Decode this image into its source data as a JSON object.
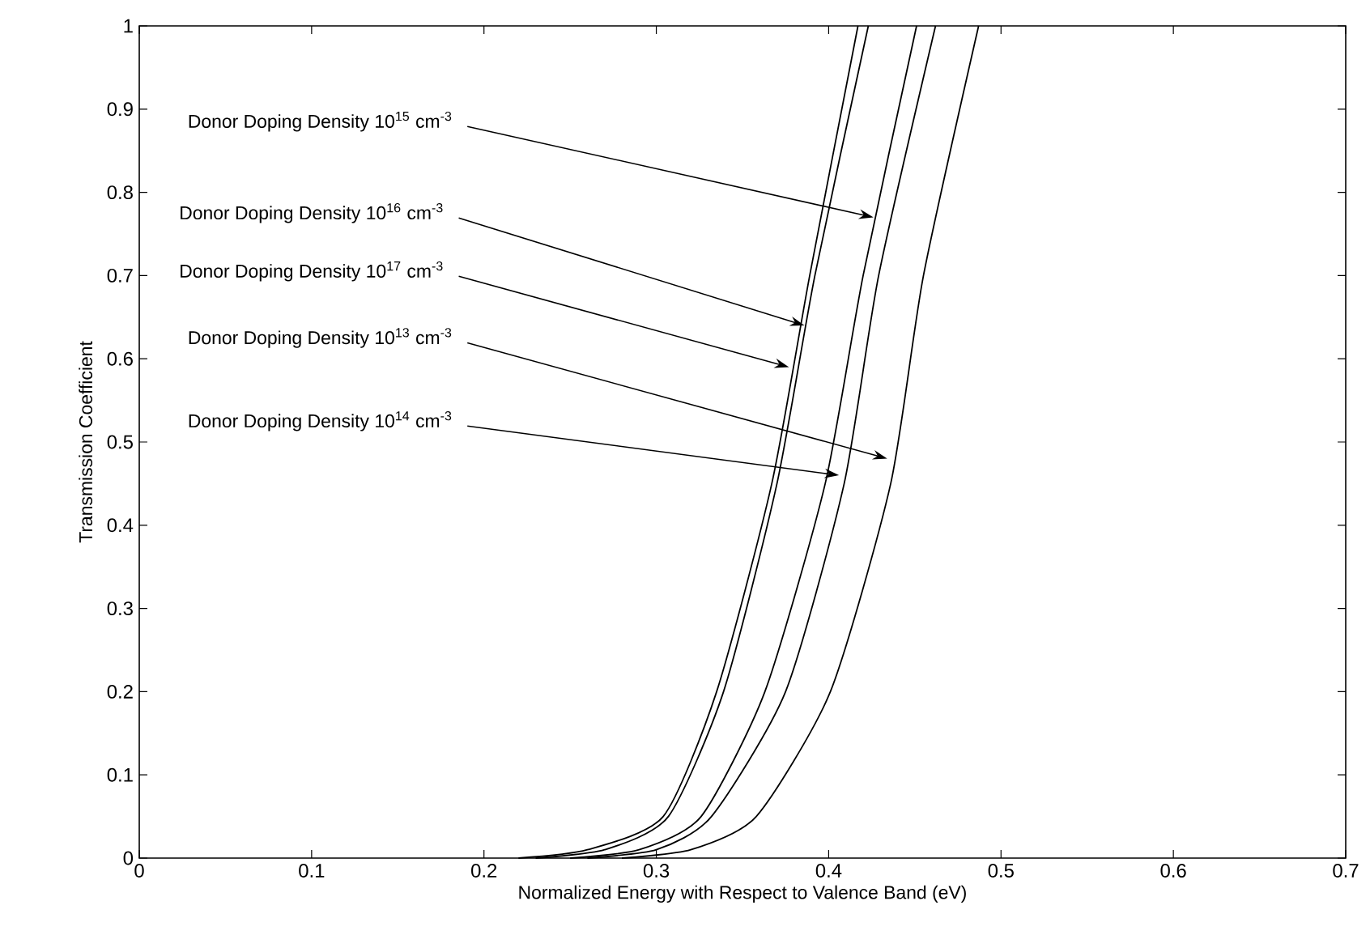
{
  "chart_data": {
    "type": "line",
    "xlabel": "Normalized Energy with Respect to Valence Band (eV)",
    "ylabel": "Transmission Coefficient",
    "xlim": [
      0,
      0.7
    ],
    "ylim": [
      0,
      1
    ],
    "xticks": [
      0,
      0.1,
      0.2,
      0.3,
      0.4,
      0.5,
      0.6,
      0.7
    ],
    "yticks": [
      0,
      0.1,
      0.2,
      0.3,
      0.4,
      0.5,
      0.6,
      0.7,
      0.8,
      0.9,
      1
    ],
    "series": [
      {
        "color": "#000000",
        "x": [
          0.22,
          0.26,
          0.304,
          0.335,
          0.367,
          0.389,
          0.417
        ],
        "values": [
          0,
          0.01,
          0.05,
          0.2,
          0.45,
          0.7,
          1
        ]
      },
      {
        "color": "#000000",
        "x": [
          0.23,
          0.27,
          0.307,
          0.339,
          0.37,
          0.392,
          0.423
        ],
        "values": [
          0,
          0.01,
          0.05,
          0.2,
          0.45,
          0.7,
          1
        ]
      },
      {
        "color": "#000000",
        "x": [
          0.25,
          0.29,
          0.326,
          0.363,
          0.398,
          0.42,
          0.451
        ],
        "values": [
          0,
          0.01,
          0.05,
          0.2,
          0.45,
          0.7,
          1
        ]
      },
      {
        "color": "#000000",
        "x": [
          0.26,
          0.3,
          0.332,
          0.375,
          0.409,
          0.429,
          0.462
        ],
        "values": [
          0,
          0.01,
          0.05,
          0.2,
          0.45,
          0.7,
          1
        ]
      },
      {
        "color": "#000000",
        "x": [
          0.28,
          0.32,
          0.358,
          0.401,
          0.436,
          0.455,
          0.487
        ],
        "values": [
          0,
          0.01,
          0.05,
          0.2,
          0.45,
          0.7,
          1
        ]
      }
    ],
    "annotations": [
      {
        "text": "Donor Doping Density 10$^{15}$ cm$^{-3}$",
        "x": 0.426,
        "y": 0.77
      },
      {
        "text": "Donor Doping Density 10$^{16}$ cm$^{-3}$",
        "x": 0.386,
        "y": 0.64
      },
      {
        "text": "Donor Doping Density 10$^{17}$ cm$^{-3}$",
        "x": 0.377,
        "y": 0.59
      },
      {
        "text": "Donor Doping Density 10$^{13}$ cm$^{-3}$",
        "x": 0.434,
        "y": 0.48
      },
      {
        "text": "Donor Doping Density 10$^{14}$ cm$^{-3}$",
        "x": 0.406,
        "y": 0.46
      }
    ]
  }
}
